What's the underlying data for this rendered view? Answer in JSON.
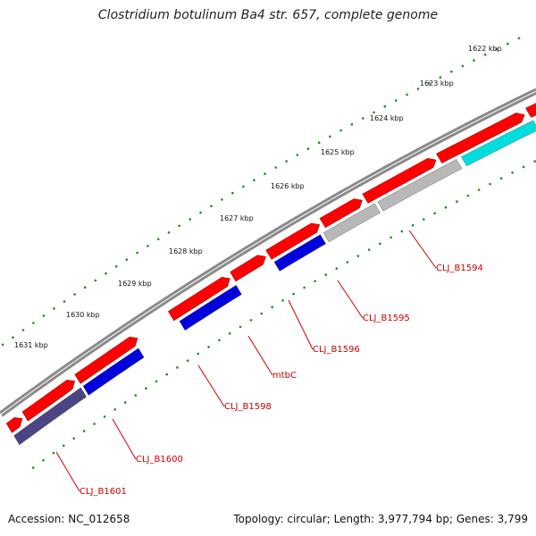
{
  "title": "Clostridium botulinum Ba4 str. 657, complete genome",
  "footer": {
    "accession": "Accession: NC_012658",
    "summary": "Topology: circular; Length: 3,977,794 bp; Genes: 3,799"
  },
  "ruler": {
    "ticks": [
      {
        "label": "1622 kbp"
      },
      {
        "label": "1623 kbp"
      },
      {
        "label": "1624 kbp"
      },
      {
        "label": "1625 kbp"
      },
      {
        "label": "1626 kbp"
      },
      {
        "label": "1627 kbp"
      },
      {
        "label": "1628 kbp"
      },
      {
        "label": "1629 kbp"
      },
      {
        "label": "1630 kbp"
      },
      {
        "label": "1631 kbp"
      }
    ]
  },
  "genes": [
    {
      "label": "CLJ_B1594"
    },
    {
      "label": "CLJ_B1595"
    },
    {
      "label": "CLJ_B1596"
    },
    {
      "label": "mtbC"
    },
    {
      "label": "CLJ_B1598"
    },
    {
      "label": "CLJ_B1600"
    },
    {
      "label": "CLJ_B1601"
    }
  ],
  "colors": {
    "backbone": "#8a8a8a",
    "forward_cds": "#ff0000",
    "reverse_blue": "#0000dd",
    "reverse_gray": "#b8b8b8",
    "reverse_cyan": "#00dddd",
    "reverse_navy": "#4b4485",
    "tick_dots": "#228822",
    "label_text": "#cc0000"
  }
}
